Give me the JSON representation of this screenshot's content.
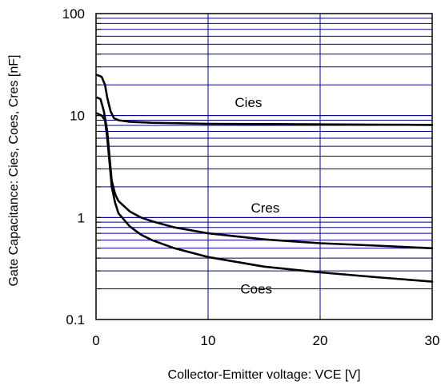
{
  "chart_data": {
    "type": "line",
    "xlabel": "Collector-Emitter voltage: VCE [V]",
    "ylabel": "Gate Capacitance: Cies, Coes, Cres [nF]",
    "xlim": [
      0,
      30
    ],
    "ylim": [
      0.1,
      100
    ],
    "yscale": "log",
    "x_ticks": [
      "0",
      "10",
      "20",
      "30"
    ],
    "y_ticks": [
      "0.1",
      "1",
      "10",
      "100"
    ],
    "grid": true,
    "colors": {
      "grid": "#00008b",
      "line": "#000000",
      "frame": "#000000"
    },
    "series": [
      {
        "name": "Cies",
        "x": [
          0.1,
          0.5,
          0.8,
          1.0,
          1.3,
          1.6,
          2,
          3,
          5,
          10,
          15,
          20,
          25,
          30
        ],
        "y": [
          25,
          24,
          20,
          15,
          11,
          9.4,
          9.0,
          8.7,
          8.5,
          8.3,
          8.25,
          8.2,
          8.15,
          8.1
        ]
      },
      {
        "name": "Cres",
        "x": [
          0.1,
          0.4,
          0.7,
          1.0,
          1.2,
          1.4,
          1.7,
          2,
          3,
          4,
          5,
          7,
          10,
          15,
          20,
          25,
          30
        ],
        "y": [
          15,
          14.5,
          11,
          7,
          4,
          2.3,
          1.7,
          1.45,
          1.15,
          1.0,
          0.92,
          0.8,
          0.7,
          0.61,
          0.56,
          0.53,
          0.5
        ]
      },
      {
        "name": "Coes",
        "x": [
          0.1,
          0.5,
          0.8,
          1.0,
          1.2,
          1.4,
          1.7,
          2,
          3,
          4,
          5,
          7,
          10,
          15,
          20,
          25,
          30
        ],
        "y": [
          10.5,
          10,
          9,
          6,
          3.5,
          2.0,
          1.4,
          1.1,
          0.82,
          0.68,
          0.6,
          0.5,
          0.41,
          0.33,
          0.29,
          0.26,
          0.235
        ]
      }
    ],
    "annotations": [
      {
        "text": "Cies",
        "x": 13.6,
        "y": 13.5
      },
      {
        "text": "Cres",
        "x": 15.1,
        "y": 1.25
      },
      {
        "text": "Coes",
        "x": 14.3,
        "y": 0.2
      }
    ]
  }
}
